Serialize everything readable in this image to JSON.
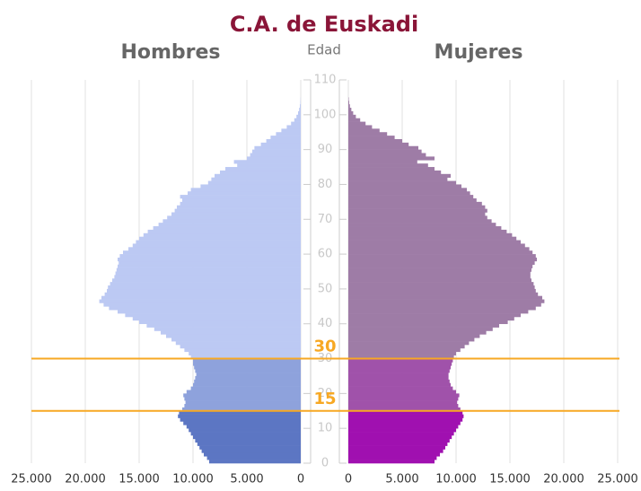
{
  "chart_data": {
    "type": "pyramid",
    "title": "C.A. de Euskadi",
    "y_label": "Edad",
    "x": [
      0,
      1,
      2,
      3,
      4,
      5,
      6,
      7,
      8,
      9,
      10,
      11,
      12,
      13,
      14,
      15,
      16,
      17,
      18,
      19,
      20,
      21,
      22,
      23,
      24,
      25,
      26,
      27,
      28,
      29,
      30,
      31,
      32,
      33,
      34,
      35,
      36,
      37,
      38,
      39,
      40,
      41,
      42,
      43,
      44,
      45,
      46,
      47,
      48,
      49,
      50,
      51,
      52,
      53,
      54,
      55,
      56,
      57,
      58,
      59,
      60,
      61,
      62,
      63,
      64,
      65,
      66,
      67,
      68,
      69,
      70,
      71,
      72,
      73,
      74,
      75,
      76,
      77,
      78,
      79,
      80,
      81,
      82,
      83,
      84,
      85,
      86,
      87,
      88,
      89,
      90,
      91,
      92,
      93,
      94,
      95,
      96,
      97,
      98,
      99,
      100,
      101,
      102,
      103,
      104
    ],
    "series": [
      {
        "name": "Hombres",
        "side": "left",
        "colors": [
          "#5c76c3",
          "#8ea2dc",
          "#bcc9f3"
        ],
        "values": [
          8500,
          8700,
          9000,
          9200,
          9400,
          9600,
          9800,
          10000,
          10200,
          10400,
          10600,
          10900,
          11200,
          11400,
          11300,
          11000,
          10800,
          10700,
          10800,
          10900,
          10600,
          10200,
          10000,
          9900,
          9800,
          9700,
          9800,
          9900,
          10000,
          10000,
          10200,
          10400,
          10800,
          11200,
          11600,
          12000,
          12500,
          13000,
          13600,
          14300,
          15000,
          15600,
          16300,
          17000,
          17800,
          18300,
          18700,
          18500,
          18200,
          18000,
          17900,
          17700,
          17500,
          17300,
          17200,
          17100,
          17000,
          16900,
          17000,
          16800,
          16500,
          16000,
          15600,
          15300,
          15000,
          14600,
          14200,
          13700,
          13200,
          12800,
          12400,
          12000,
          11700,
          11500,
          11200,
          11000,
          11200,
          10500,
          10200,
          9300,
          8600,
          8300,
          8000,
          7500,
          7000,
          5900,
          6200,
          5000,
          4700,
          4500,
          4300,
          3700,
          3200,
          2800,
          2300,
          1800,
          1300,
          900,
          600,
          400,
          250,
          150,
          80,
          40,
          20
        ]
      },
      {
        "name": "Mujeres",
        "side": "right",
        "colors": [
          "#a010b0",
          "#a052aa",
          "#9e7ca6"
        ],
        "values": [
          8000,
          8200,
          8500,
          8800,
          9000,
          9200,
          9400,
          9600,
          9800,
          10000,
          10200,
          10400,
          10600,
          10700,
          10600,
          10400,
          10200,
          10100,
          10200,
          10300,
          10000,
          9700,
          9500,
          9400,
          9300,
          9300,
          9400,
          9500,
          9600,
          9700,
          9800,
          10000,
          10400,
          10800,
          11200,
          11700,
          12200,
          12800,
          13400,
          14000,
          14800,
          15400,
          16000,
          16700,
          17400,
          17900,
          18200,
          18000,
          17600,
          17400,
          17300,
          17200,
          17000,
          16900,
          16900,
          17000,
          17100,
          17300,
          17500,
          17400,
          17100,
          16800,
          16400,
          16000,
          15600,
          15200,
          14700,
          14200,
          13700,
          13300,
          12900,
          12700,
          12900,
          12700,
          12400,
          11900,
          11600,
          11300,
          11000,
          10500,
          10000,
          9200,
          9500,
          8600,
          8000,
          7400,
          6400,
          8000,
          7200,
          6800,
          6500,
          5600,
          5000,
          4300,
          3600,
          2900,
          2200,
          1600,
          1100,
          700,
          450,
          280,
          150,
          80,
          40
        ]
      }
    ],
    "markers": [
      15,
      30
    ],
    "marker_color": "#f7a823",
    "ylim": [
      0,
      110
    ],
    "yticks": [
      0,
      10,
      20,
      30,
      40,
      50,
      60,
      70,
      80,
      90,
      100,
      110
    ],
    "xlim": [
      0,
      25000
    ],
    "xticks": [
      0,
      {
        "value": 5000,
        "label": "5.000"
      },
      {
        "value": 10000,
        "label": "10.000"
      },
      {
        "value": 15000,
        "label": "15.000"
      },
      {
        "value": 20000,
        "label": "20.000"
      },
      {
        "value": 25000,
        "label": "25.000"
      }
    ],
    "grid": true
  }
}
